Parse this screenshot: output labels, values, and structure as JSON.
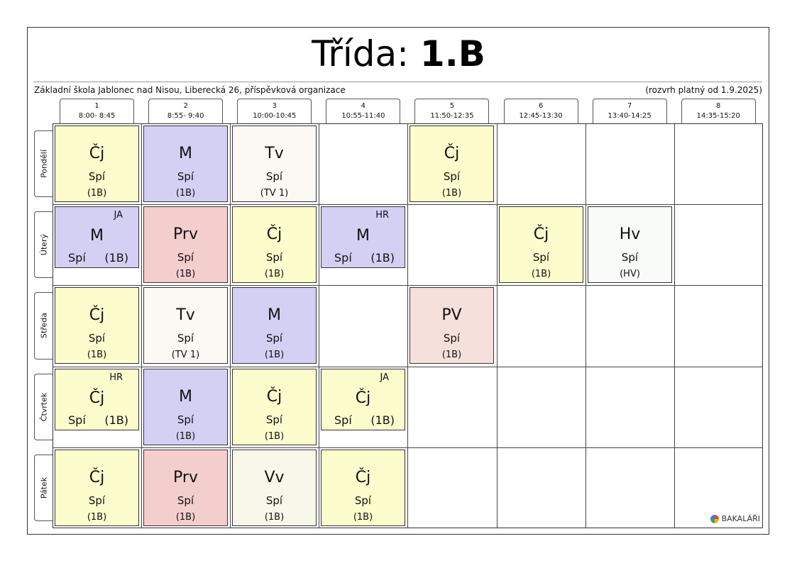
{
  "title": {
    "prefix": "Třída: ",
    "class": "1.B"
  },
  "school": "Základní škola Jablonec nad Nisou, Liberecká 26, příspěvková organizace",
  "valid_from": "(rozvrh platný od 1.9.2025)",
  "hours": [
    {
      "num": "1",
      "time": "8:00- 8:45"
    },
    {
      "num": "2",
      "time": "8:55- 9:40"
    },
    {
      "num": "3",
      "time": "10:00-10:45"
    },
    {
      "num": "4",
      "time": "10:55-11:40"
    },
    {
      "num": "5",
      "time": "11:50-12:35"
    },
    {
      "num": "6",
      "time": "12:45-13:30"
    },
    {
      "num": "7",
      "time": "13:40-14:25"
    },
    {
      "num": "8",
      "time": "14:35-15:20"
    }
  ],
  "days": [
    "Pondělí",
    "Úterý",
    "Středa",
    "Čtvrtek",
    "Pátek"
  ],
  "colors": {
    "Čj": "#fdfccd",
    "M": "#d3d0f4",
    "Tv": "#fcf8f4",
    "Prv": "#f4cdcd",
    "Hv": "#f9fbf9",
    "PV": "#f6e0dc",
    "Vv": "#f8f8ea"
  },
  "lessons": [
    {
      "day": 0,
      "hour": 0,
      "subject": "Čj",
      "teacher": "Spí",
      "group": "(1B)"
    },
    {
      "day": 0,
      "hour": 1,
      "subject": "M",
      "teacher": "Spí",
      "group": "(1B)"
    },
    {
      "day": 0,
      "hour": 2,
      "subject": "Tv",
      "teacher": "Spí",
      "group": "(TV 1)"
    },
    {
      "day": 0,
      "hour": 4,
      "subject": "Čj",
      "teacher": "Spí",
      "group": "(1B)"
    },
    {
      "day": 1,
      "hour": 0,
      "subject": "M",
      "teacher": "Spí",
      "group": "(1B)",
      "code": "JA",
      "split": true
    },
    {
      "day": 1,
      "hour": 1,
      "subject": "Prv",
      "teacher": "Spí",
      "group": "(1B)"
    },
    {
      "day": 1,
      "hour": 2,
      "subject": "Čj",
      "teacher": "Spí",
      "group": "(1B)"
    },
    {
      "day": 1,
      "hour": 3,
      "subject": "M",
      "teacher": "Spí",
      "group": "(1B)",
      "code": "HR",
      "split": true
    },
    {
      "day": 1,
      "hour": 5,
      "subject": "Čj",
      "teacher": "Spí",
      "group": "(1B)"
    },
    {
      "day": 1,
      "hour": 6,
      "subject": "Hv",
      "teacher": "Spí",
      "group": "(HV)"
    },
    {
      "day": 2,
      "hour": 0,
      "subject": "Čj",
      "teacher": "Spí",
      "group": "(1B)"
    },
    {
      "day": 2,
      "hour": 1,
      "subject": "Tv",
      "teacher": "Spí",
      "group": "(TV 1)"
    },
    {
      "day": 2,
      "hour": 2,
      "subject": "M",
      "teacher": "Spí",
      "group": "(1B)"
    },
    {
      "day": 2,
      "hour": 4,
      "subject": "PV",
      "teacher": "Spí",
      "group": "(1B)"
    },
    {
      "day": 3,
      "hour": 0,
      "subject": "Čj",
      "teacher": "Spí",
      "group": "(1B)",
      "code": "HR",
      "split": true
    },
    {
      "day": 3,
      "hour": 1,
      "subject": "M",
      "teacher": "Spí",
      "group": "(1B)"
    },
    {
      "day": 3,
      "hour": 2,
      "subject": "Čj",
      "teacher": "Spí",
      "group": "(1B)"
    },
    {
      "day": 3,
      "hour": 3,
      "subject": "Čj",
      "teacher": "Spí",
      "group": "(1B)",
      "code": "JA",
      "split": true
    },
    {
      "day": 4,
      "hour": 0,
      "subject": "Čj",
      "teacher": "Spí",
      "group": "(1B)"
    },
    {
      "day": 4,
      "hour": 1,
      "subject": "Prv",
      "teacher": "Spí",
      "group": "(1B)"
    },
    {
      "day": 4,
      "hour": 2,
      "subject": "Vv",
      "teacher": "Spí",
      "group": "(1B)"
    },
    {
      "day": 4,
      "hour": 3,
      "subject": "Čj",
      "teacher": "Spí",
      "group": "(1B)"
    }
  ],
  "logo": {
    "text": "BAKALÁŘI",
    "icon": "bakalari-logo-icon"
  }
}
